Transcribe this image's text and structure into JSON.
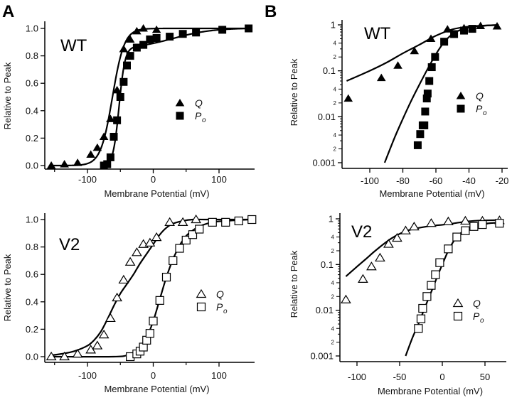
{
  "panel_letters": [
    "A",
    "B"
  ],
  "chart_data": [
    {
      "id": "A-WT",
      "type": "scatter",
      "panel": "A",
      "tag": "WT",
      "xlabel": "Membrane Potential (mV)",
      "ylabel": "Relative to Peak",
      "xscale": "linear",
      "yscale": "linear",
      "xlim": [
        -160,
        150
      ],
      "ylim": [
        0,
        1.0
      ],
      "xticks": [
        -100,
        0,
        100
      ],
      "xtick_labels": [
        "-100",
        "0",
        "100"
      ],
      "xminor": [
        -150,
        -50,
        50
      ],
      "yticks": [
        0,
        0.2,
        0.4,
        0.6,
        0.8,
        1.0
      ],
      "ytick_labels": [
        "0.0",
        "0.2",
        "0.4",
        "0.6",
        "0.8",
        "1.0"
      ],
      "legend": {
        "position": "right-middle",
        "entries": [
          {
            "marker": "filled-triangle",
            "label": "Q",
            "sub": ""
          },
          {
            "marker": "filled-square",
            "label": "P",
            "sub": "o"
          }
        ]
      },
      "series": [
        {
          "name": "Q",
          "marker": "filled-triangle",
          "x": [
            -155,
            -135,
            -115,
            -95,
            -85,
            -75,
            -65,
            -55,
            -45,
            -35,
            -25,
            -15,
            5
          ],
          "y": [
            0.0,
            0.01,
            0.02,
            0.08,
            0.13,
            0.21,
            0.34,
            0.55,
            0.85,
            0.92,
            0.98,
            1.0,
            0.99
          ]
        },
        {
          "name": "Po",
          "marker": "filled-square",
          "x": [
            -75,
            -70,
            -65,
            -60,
            -55,
            -50,
            -45,
            -40,
            -35,
            -25,
            -15,
            -5,
            5,
            25,
            45,
            65,
            105,
            145
          ],
          "y": [
            0.0,
            0.01,
            0.06,
            0.21,
            0.33,
            0.5,
            0.61,
            0.73,
            0.8,
            0.86,
            0.88,
            0.92,
            0.93,
            0.94,
            0.96,
            0.97,
            0.99,
            1.0
          ]
        }
      ],
      "fits": [
        {
          "name": "Q fit",
          "kind": "boltzmann",
          "v_half": -62,
          "slope": 9,
          "x_range": [
            -155,
            145
          ]
        },
        {
          "name": "Po fit",
          "kind": "boltzmann2",
          "v_half": -52,
          "slope": 4.5,
          "x_range": [
            -75,
            145
          ],
          "tail_frac": 0.85,
          "tail_v": 30,
          "tail_slope": 30
        }
      ]
    },
    {
      "id": "B-WT",
      "type": "scatter",
      "panel": "B",
      "tag": "WT",
      "xlabel": "Membrane Potential (mV)",
      "ylabel": "Relative to Peak",
      "xscale": "linear",
      "yscale": "log",
      "xlim": [
        -118,
        -20
      ],
      "ylim": [
        0.001,
        1
      ],
      "xticks": [
        -100,
        -80,
        -60,
        -40,
        -20
      ],
      "xtick_labels": [
        "-100",
        "-80",
        "-60",
        "-40",
        "-20"
      ],
      "yticks": [
        0.001,
        0.01,
        0.1,
        1
      ],
      "ytick_labels": [
        "0.001",
        "0.01",
        "0.1",
        "1"
      ],
      "yminor_labels": [
        "2",
        "4"
      ],
      "legend": {
        "position": "right-middle",
        "entries": [
          {
            "marker": "filled-triangle",
            "label": "Q",
            "sub": ""
          },
          {
            "marker": "filled-square",
            "label": "P",
            "sub": "o"
          }
        ]
      },
      "series": [
        {
          "name": "Q",
          "marker": "filled-triangle",
          "x": [
            -113,
            -93,
            -83,
            -73,
            -63,
            -53,
            -43,
            -33,
            -23
          ],
          "y": [
            0.025,
            0.07,
            0.13,
            0.27,
            0.5,
            0.8,
            0.85,
            0.95,
            0.93
          ]
        },
        {
          "name": "Po",
          "marker": "filled-square",
          "x": [
            -71,
            -69.5,
            -68,
            -67,
            -66.5,
            -65.5,
            -65,
            -64,
            -62.5,
            -60.5,
            -55,
            -49,
            -43,
            -38
          ],
          "y": [
            0.0024,
            0.0042,
            0.0065,
            0.0065,
            0.013,
            0.025,
            0.032,
            0.06,
            0.12,
            0.2,
            0.43,
            0.63,
            0.75,
            0.82
          ]
        }
      ],
      "fits": [
        {
          "name": "Q fit",
          "x": [
            -114,
            -100,
            -90,
            -80,
            -70,
            -60,
            -50,
            -40,
            -30,
            -22
          ],
          "y": [
            0.06,
            0.1,
            0.15,
            0.24,
            0.37,
            0.58,
            0.8,
            0.92,
            0.97,
            0.99
          ]
        },
        {
          "name": "Po fit",
          "x": [
            -91,
            -85,
            -80,
            -75,
            -70,
            -65,
            -60,
            -55,
            -50,
            -45,
            -40,
            -30,
            -22
          ],
          "y": [
            0.001,
            0.0035,
            0.009,
            0.022,
            0.05,
            0.11,
            0.23,
            0.42,
            0.63,
            0.78,
            0.88,
            0.96,
            0.99
          ]
        }
      ]
    },
    {
      "id": "A-V2",
      "type": "scatter",
      "panel": "A",
      "tag": "V2",
      "xlabel": "Membrane Potential (mV)",
      "ylabel": "Relative to Peak",
      "xscale": "linear",
      "yscale": "linear",
      "xlim": [
        -160,
        150
      ],
      "ylim": [
        0,
        1.0
      ],
      "xticks": [
        -100,
        0,
        100
      ],
      "xtick_labels": [
        "-100",
        "0",
        "100"
      ],
      "xminor": [
        -150,
        -50,
        50
      ],
      "yticks": [
        0,
        0.2,
        0.4,
        0.6,
        0.8,
        1.0
      ],
      "ytick_labels": [
        "0.0",
        "0.2",
        "0.4",
        "0.6",
        "0.8",
        "1.0"
      ],
      "legend": {
        "position": "right-middle",
        "entries": [
          {
            "marker": "open-triangle",
            "label": "Q",
            "sub": ""
          },
          {
            "marker": "open-square",
            "label": "P",
            "sub": "o"
          }
        ]
      },
      "series": [
        {
          "name": "Q",
          "marker": "open-triangle",
          "x": [
            -155,
            -135,
            -115,
            -95,
            -85,
            -75,
            -65,
            -55,
            -45,
            -35,
            -25,
            -15,
            -5,
            5,
            25,
            45,
            65
          ],
          "y": [
            0.0,
            0.0,
            0.02,
            0.05,
            0.08,
            0.16,
            0.28,
            0.43,
            0.56,
            0.69,
            0.76,
            0.82,
            0.83,
            0.87,
            0.98,
            0.98,
            1.0
          ]
        },
        {
          "name": "Po",
          "marker": "open-square",
          "x": [
            -35,
            -25,
            -20,
            -15,
            -10,
            -5,
            0,
            10,
            20,
            30,
            40,
            50,
            60,
            70,
            90,
            110,
            130,
            150
          ],
          "y": [
            0.0,
            0.02,
            0.04,
            0.07,
            0.12,
            0.17,
            0.26,
            0.41,
            0.58,
            0.7,
            0.79,
            0.85,
            0.89,
            0.93,
            0.98,
            0.98,
            0.99,
            1.0
          ]
        }
      ],
      "fits": [
        {
          "name": "Q fit",
          "x": [
            -155,
            -140,
            -120,
            -100,
            -90,
            -80,
            -70,
            -60,
            -50,
            -40,
            -30,
            -20,
            -10,
            0,
            10,
            20,
            30,
            45,
            60,
            80,
            100,
            145
          ],
          "y": [
            0.01,
            0.02,
            0.04,
            0.08,
            0.12,
            0.18,
            0.27,
            0.37,
            0.46,
            0.53,
            0.6,
            0.68,
            0.75,
            0.82,
            0.89,
            0.94,
            0.97,
            0.99,
            1.0,
            1.0,
            1.0,
            1.0
          ]
        },
        {
          "name": "Po fit",
          "x": [
            -155,
            -60,
            -40,
            -30,
            -20,
            -10,
            0,
            10,
            20,
            30,
            40,
            50,
            60,
            70,
            90,
            110,
            145
          ],
          "y": [
            0.0,
            0.0,
            0.01,
            0.03,
            0.07,
            0.14,
            0.26,
            0.42,
            0.58,
            0.71,
            0.81,
            0.88,
            0.92,
            0.95,
            0.98,
            0.99,
            1.0
          ]
        }
      ]
    },
    {
      "id": "B-V2",
      "type": "scatter",
      "panel": "B",
      "tag": "V2",
      "xlabel": "Membrane Potential (mV)",
      "ylabel": "Relative to Peak",
      "xscale": "linear",
      "yscale": "log",
      "xlim": [
        -120,
        72
      ],
      "ylim": [
        0.001,
        1
      ],
      "xticks": [
        -100,
        -50,
        0,
        50
      ],
      "xtick_labels": [
        "-100",
        "-50",
        "0",
        "50"
      ],
      "yticks": [
        0.001,
        0.01,
        0.1,
        1
      ],
      "ytick_labels": [
        "0.001",
        "0.01",
        "0.1",
        "1"
      ],
      "yminor_labels": [
        "2",
        "4"
      ],
      "legend": {
        "position": "right-middle",
        "entries": [
          {
            "marker": "open-triangle",
            "label": "Q",
            "sub": ""
          },
          {
            "marker": "open-square",
            "label": "P",
            "sub": "o"
          }
        ]
      },
      "series": [
        {
          "name": "Q",
          "marker": "open-triangle",
          "x": [
            -113,
            -93,
            -83,
            -73,
            -63,
            -53,
            -43,
            -33,
            -13,
            7,
            27,
            47,
            67
          ],
          "y": [
            0.017,
            0.048,
            0.09,
            0.14,
            0.28,
            0.38,
            0.55,
            0.67,
            0.8,
            0.87,
            0.9,
            0.9,
            0.92
          ]
        },
        {
          "name": "Po",
          "marker": "open-square",
          "x": [
            -28,
            -25,
            -23,
            -18,
            -13,
            -8,
            -3,
            7,
            17,
            27,
            37,
            47,
            67
          ],
          "y": [
            0.004,
            0.0065,
            0.011,
            0.02,
            0.035,
            0.06,
            0.11,
            0.22,
            0.4,
            0.55,
            0.68,
            0.75,
            0.8
          ]
        }
      ],
      "fits": [
        {
          "name": "Q fit",
          "x": [
            -113,
            -100,
            -90,
            -80,
            -70,
            -60,
            -50,
            -40,
            -30,
            -20,
            -10,
            0,
            10,
            20,
            30,
            45,
            67
          ],
          "y": [
            0.055,
            0.09,
            0.13,
            0.19,
            0.27,
            0.37,
            0.47,
            0.56,
            0.62,
            0.67,
            0.71,
            0.74,
            0.78,
            0.83,
            0.88,
            0.92,
            0.94
          ]
        },
        {
          "name": "Po fit",
          "x": [
            -43,
            -35,
            -28,
            -20,
            -12,
            -5,
            0,
            7,
            15,
            25,
            35,
            45,
            55,
            67
          ],
          "y": [
            0.001,
            0.0025,
            0.005,
            0.012,
            0.028,
            0.06,
            0.1,
            0.2,
            0.36,
            0.55,
            0.68,
            0.76,
            0.8,
            0.83
          ]
        }
      ]
    }
  ]
}
